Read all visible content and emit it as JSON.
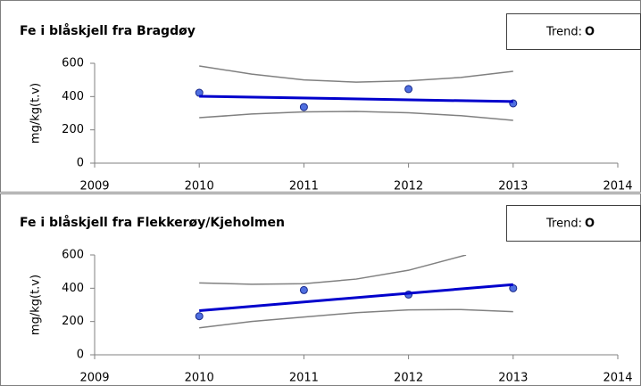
{
  "chart_data": [
    {
      "type": "line",
      "title": "Fe i blåskjell fra Bragdøy",
      "ylabel": "mg/kg(t.v)",
      "xlim": [
        2009,
        2014
      ],
      "xticks": [
        2009,
        2010,
        2011,
        2012,
        2013,
        2014
      ],
      "ylim": [
        0,
        600
      ],
      "yticks": [
        0,
        200,
        400,
        600
      ],
      "legend": {
        "label": "Trend:",
        "symbol": "O"
      },
      "series": [
        {
          "mode": "markers",
          "color": "#4f6fe0",
          "x": [
            2010,
            2011,
            2012,
            2013
          ],
          "values": [
            423,
            337,
            445,
            359
          ]
        },
        {
          "mode": "line",
          "color": "#0000cc",
          "width": 3,
          "x": [
            2010,
            2013
          ],
          "values": [
            402,
            370
          ]
        },
        {
          "mode": "line",
          "color": "#808080",
          "width": 1.5,
          "x": [
            2010,
            2010.5,
            2011,
            2011.5,
            2012,
            2012.5,
            2013
          ],
          "values": [
            584,
            535,
            500,
            487,
            495,
            515,
            552
          ]
        },
        {
          "mode": "line",
          "color": "#808080",
          "width": 1.5,
          "x": [
            2010,
            2010.5,
            2011,
            2011.5,
            2012,
            2012.5,
            2013
          ],
          "values": [
            273,
            295,
            308,
            311,
            303,
            285,
            257
          ]
        }
      ]
    },
    {
      "type": "line",
      "title": "Fe i blåskjell fra Flekkerøy/Kjeholmen",
      "ylabel": "mg/kg(t.v)",
      "xlim": [
        2009,
        2014
      ],
      "xticks": [
        2009,
        2010,
        2011,
        2012,
        2013,
        2014
      ],
      "ylim": [
        0,
        600
      ],
      "yticks": [
        0,
        200,
        400,
        600
      ],
      "legend": {
        "label": "Trend:",
        "symbol": "O"
      },
      "series": [
        {
          "mode": "markers",
          "color": "#4f6fe0",
          "x": [
            2010,
            2011,
            2012,
            2013
          ],
          "values": [
            232,
            389,
            362,
            400
          ]
        },
        {
          "mode": "line",
          "color": "#0000cc",
          "width": 3,
          "x": [
            2010,
            2013
          ],
          "values": [
            265,
            422
          ]
        },
        {
          "mode": "line",
          "color": "#808080",
          "width": 1.5,
          "x": [
            2010,
            2010.5,
            2011,
            2011.5,
            2012,
            2012.55
          ],
          "values": [
            432,
            424,
            427,
            455,
            508,
            600
          ]
        },
        {
          "mode": "line",
          "color": "#808080",
          "width": 1.5,
          "x": [
            2010,
            2010.5,
            2011,
            2011.5,
            2012,
            2012.5,
            2013
          ],
          "values": [
            162,
            200,
            227,
            253,
            270,
            272,
            259
          ]
        }
      ]
    }
  ]
}
